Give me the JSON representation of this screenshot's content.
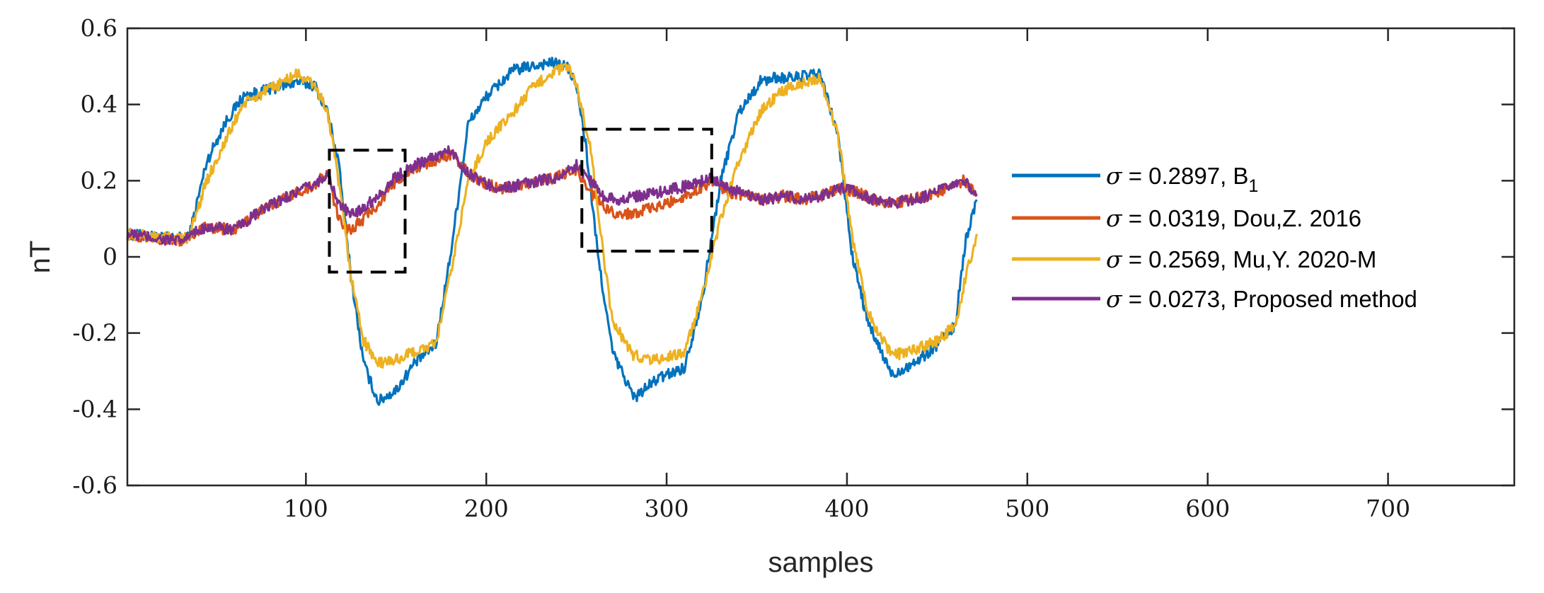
{
  "chart_data": {
    "type": "line",
    "title": "",
    "xlabel": "samples",
    "ylabel": "nT",
    "xlim": [
      1,
      770
    ],
    "ylim": [
      -0.6,
      0.6
    ],
    "xticks": [
      100,
      200,
      300,
      400,
      500,
      600,
      700
    ],
    "xtick_labels": [
      "100",
      "200",
      "300",
      "400",
      "500",
      "600",
      "700"
    ],
    "yticks": [
      -0.6,
      -0.4,
      -0.2,
      0,
      0.2,
      0.4,
      0.6
    ],
    "ytick_labels": [
      "-0.6",
      "-0.4",
      "-0.2",
      "0",
      "0.2",
      "0.4",
      "0.6"
    ],
    "grid": false,
    "legend_position": "right",
    "series": [
      {
        "name": "B1",
        "legend_sigma": "σ",
        "legend_rest": " = 0.2897, B",
        "legend_sub": "1",
        "color": "#0072BD",
        "x": [
          1,
          20,
          35,
          45,
          55,
          65,
          80,
          95,
          105,
          112,
          118,
          125,
          132,
          140,
          150,
          160,
          172,
          180,
          190,
          200,
          215,
          225,
          235,
          245,
          250,
          255,
          262,
          270,
          282,
          295,
          310,
          320,
          330,
          340,
          352,
          360,
          370,
          385,
          395,
          403,
          412,
          425,
          440,
          450,
          460,
          466,
          472
        ],
        "y": [
          0.06,
          0.05,
          0.05,
          0.25,
          0.35,
          0.42,
          0.44,
          0.46,
          0.45,
          0.38,
          0.25,
          -0.05,
          -0.28,
          -0.38,
          -0.35,
          -0.28,
          -0.23,
          0.0,
          0.35,
          0.42,
          0.49,
          0.5,
          0.51,
          0.5,
          0.45,
          0.3,
          0.0,
          -0.25,
          -0.37,
          -0.32,
          -0.29,
          -0.1,
          0.2,
          0.38,
          0.46,
          0.47,
          0.47,
          0.48,
          0.32,
          0.0,
          -0.18,
          -0.31,
          -0.27,
          -0.23,
          -0.18,
          0.05,
          0.15
        ]
      },
      {
        "name": "Dou,Z. 2016",
        "legend_sigma": "σ",
        "legend_rest": " = 0.0319, Dou,Z. 2016",
        "color": "#D95319",
        "x": [
          1,
          15,
          30,
          45,
          60,
          75,
          90,
          105,
          112,
          118,
          125,
          132,
          140,
          150,
          160,
          170,
          180,
          190,
          200,
          210,
          220,
          230,
          240,
          250,
          258,
          265,
          275,
          285,
          295,
          305,
          315,
          325,
          335,
          345,
          355,
          365,
          375,
          385,
          395,
          405,
          415,
          425,
          435,
          445,
          455,
          465,
          472
        ],
        "y": [
          0.06,
          0.05,
          0.04,
          0.08,
          0.07,
          0.12,
          0.16,
          0.19,
          0.22,
          0.1,
          0.07,
          0.1,
          0.14,
          0.2,
          0.23,
          0.25,
          0.27,
          0.22,
          0.19,
          0.18,
          0.19,
          0.2,
          0.21,
          0.23,
          0.17,
          0.13,
          0.11,
          0.12,
          0.13,
          0.15,
          0.17,
          0.2,
          0.17,
          0.16,
          0.15,
          0.16,
          0.15,
          0.16,
          0.18,
          0.17,
          0.15,
          0.14,
          0.15,
          0.16,
          0.18,
          0.2,
          0.16
        ]
      },
      {
        "name": "Mu,Y. 2020-M",
        "legend_sigma": "σ",
        "legend_rest": " = 0.2569, Mu,Y. 2020-M",
        "color": "#EDB120",
        "x": [
          1,
          20,
          35,
          45,
          55,
          65,
          80,
          95,
          105,
          112,
          118,
          125,
          132,
          140,
          150,
          160,
          172,
          180,
          190,
          200,
          215,
          225,
          235,
          245,
          250,
          258,
          265,
          270,
          282,
          295,
          310,
          320,
          330,
          340,
          352,
          360,
          370,
          385,
          395,
          403,
          412,
          425,
          440,
          450,
          460,
          466,
          472
        ],
        "y": [
          0.06,
          0.05,
          0.05,
          0.2,
          0.3,
          0.4,
          0.44,
          0.48,
          0.45,
          0.38,
          0.2,
          -0.05,
          -0.22,
          -0.28,
          -0.27,
          -0.25,
          -0.23,
          -0.05,
          0.2,
          0.3,
          0.38,
          0.44,
          0.48,
          0.5,
          0.45,
          0.28,
          0.0,
          -0.17,
          -0.26,
          -0.27,
          -0.25,
          -0.1,
          0.1,
          0.25,
          0.38,
          0.42,
          0.45,
          0.47,
          0.32,
          0.05,
          -0.15,
          -0.26,
          -0.24,
          -0.22,
          -0.18,
          -0.05,
          0.06
        ]
      },
      {
        "name": "Proposed method",
        "legend_sigma": "σ",
        "legend_rest": " = 0.0273, Proposed method",
        "color": "#7E2F8E",
        "x": [
          1,
          15,
          30,
          45,
          60,
          75,
          90,
          105,
          112,
          118,
          125,
          132,
          140,
          150,
          160,
          170,
          180,
          190,
          200,
          210,
          220,
          230,
          240,
          250,
          258,
          265,
          275,
          285,
          295,
          305,
          315,
          325,
          335,
          345,
          355,
          365,
          375,
          385,
          395,
          405,
          415,
          425,
          435,
          445,
          455,
          465,
          472
        ],
        "y": [
          0.06,
          0.05,
          0.04,
          0.08,
          0.07,
          0.12,
          0.16,
          0.19,
          0.22,
          0.14,
          0.11,
          0.13,
          0.16,
          0.21,
          0.24,
          0.26,
          0.28,
          0.22,
          0.19,
          0.18,
          0.19,
          0.2,
          0.21,
          0.24,
          0.2,
          0.16,
          0.15,
          0.16,
          0.17,
          0.18,
          0.19,
          0.21,
          0.18,
          0.16,
          0.15,
          0.16,
          0.15,
          0.16,
          0.18,
          0.17,
          0.15,
          0.14,
          0.15,
          0.16,
          0.18,
          0.2,
          0.16
        ]
      }
    ],
    "annotation_boxes": [
      {
        "x_range": [
          113,
          155
        ],
        "y_range": [
          -0.04,
          0.28
        ],
        "style": "dashed"
      },
      {
        "x_range": [
          253,
          325
        ],
        "y_range": [
          0.015,
          0.335
        ],
        "style": "dashed"
      }
    ]
  }
}
